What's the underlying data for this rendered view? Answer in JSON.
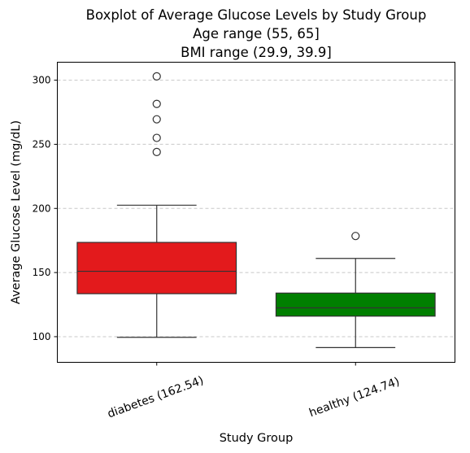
{
  "chart_data": {
    "type": "boxplot",
    "title_lines": [
      "Boxplot of Average Glucose Levels by Study Group",
      "Age range (55, 65]",
      "BMI range (29.9, 39.9]"
    ],
    "xlabel": "Study Group",
    "ylabel": "Average Glucose Level (mg/dL)",
    "ylim": [
      80,
      314
    ],
    "yticks": [
      100,
      150,
      200,
      250,
      300
    ],
    "grid": "horizontal-dashed",
    "categories": [
      "diabetes (162.54)",
      "healthy (124.74)"
    ],
    "boxes": [
      {
        "category": "diabetes (162.54)",
        "color": "#e31a1c",
        "whisker_low": 99.5,
        "q1": 133.5,
        "median": 151,
        "q3": 173.5,
        "whisker_high": 202.5,
        "outliers": [
          244,
          255,
          269.5,
          281.5,
          303
        ]
      },
      {
        "category": "healthy (124.74)",
        "color": "#007f00",
        "whisker_low": 91.5,
        "q1": 116,
        "median": 122.5,
        "q3": 134,
        "whisker_high": 161,
        "outliers": [
          178.5
        ]
      }
    ]
  }
}
